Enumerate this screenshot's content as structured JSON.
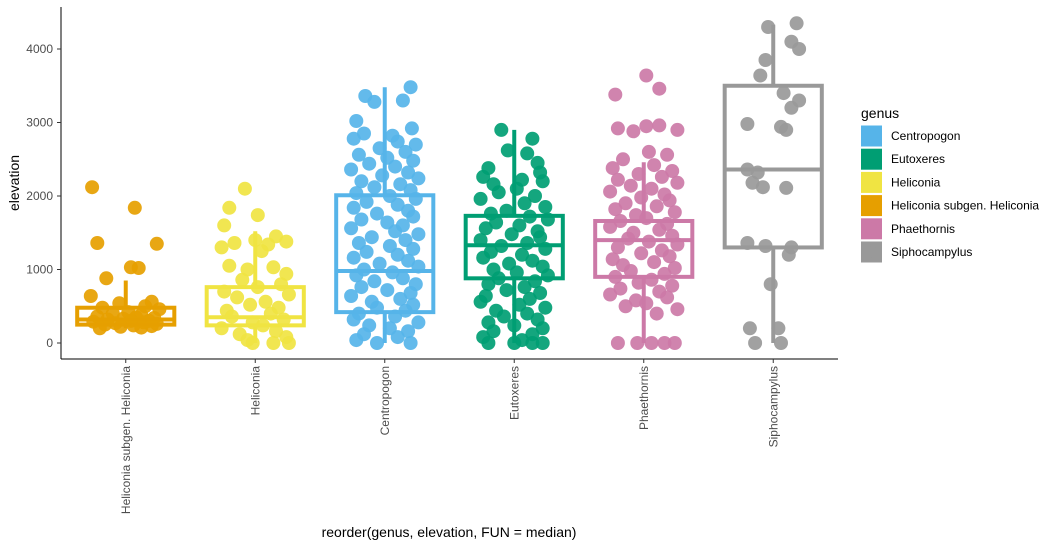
{
  "chart_data": {
    "type": "boxplot",
    "xlabel": "reorder(genus, elevation, FUN = median)",
    "ylabel": "elevation",
    "ylim": [
      -180,
      4450
    ],
    "yticks": [
      0,
      1000,
      2000,
      3000,
      4000
    ],
    "grid": false,
    "legend": {
      "title": "genus",
      "placement": "right",
      "entries": [
        "Centropogon",
        "Eutoxeres",
        "Heliconia",
        "Heliconia subgen. Heliconia",
        "Phaethornis",
        "Siphocampylus"
      ]
    },
    "colors": {
      "Centropogon": "#56B4E9",
      "Eutoxeres": "#009E73",
      "Heliconia": "#F0E442",
      "Heliconia subgen. Heliconia": "#E69F00",
      "Phaethornis": "#CC79A7",
      "Siphocampylus": "#999999"
    },
    "categories": [
      "Heliconia subgen. Heliconia",
      "Heliconia",
      "Centropogon",
      "Eutoxeres",
      "Phaethornis",
      "Siphocampylus"
    ],
    "boxes": [
      {
        "genus": "Heliconia subgen. Heliconia",
        "whisker_low": 200,
        "q1": 250,
        "median": 320,
        "q3": 480,
        "whisker_high": 850
      },
      {
        "genus": "Heliconia",
        "whisker_low": 0,
        "q1": 240,
        "median": 350,
        "q3": 760,
        "whisker_high": 1520
      },
      {
        "genus": "Centropogon",
        "whisker_low": 0,
        "q1": 420,
        "median": 980,
        "q3": 2010,
        "whisker_high": 3480
      },
      {
        "genus": "Eutoxeres",
        "whisker_low": 0,
        "q1": 880,
        "median": 1330,
        "q3": 1730,
        "whisker_high": 2900
      },
      {
        "genus": "Phaethornis",
        "whisker_low": 0,
        "q1": 900,
        "median": 1400,
        "q3": 1660,
        "whisker_high": 2460
      },
      {
        "genus": "Siphocampylus",
        "whisker_low": 0,
        "q1": 1300,
        "median": 2360,
        "q3": 3500,
        "whisker_high": 4330
      }
    ],
    "points": [
      {
        "genus": "Heliconia subgen. Heliconia",
        "values": [
          2120,
          1840,
          1360,
          1350,
          1030,
          1020,
          880,
          640,
          560,
          540,
          500,
          480,
          460,
          420,
          400,
          380,
          360,
          350,
          340,
          330,
          320,
          300,
          300,
          290,
          280,
          270,
          260,
          250,
          240,
          230,
          220,
          210,
          200
        ],
        "offsets": [
          -0.26,
          0.07,
          -0.22,
          0.24,
          0.04,
          0.1,
          -0.15,
          -0.27,
          0.2,
          -0.05,
          0.15,
          -0.18,
          0.26,
          0.02,
          -0.1,
          0.12,
          -0.22,
          0.08,
          0.22,
          -0.02,
          -0.14,
          0.18,
          0.04,
          -0.25,
          0.14,
          -0.08,
          0.24,
          -0.16,
          0.06,
          0.2,
          -0.04,
          0.12,
          -0.2
        ]
      },
      {
        "genus": "Heliconia",
        "values": [
          2100,
          1840,
          1740,
          1600,
          1450,
          1400,
          1380,
          1360,
          1340,
          1300,
          1250,
          1050,
          1030,
          1000,
          940,
          860,
          800,
          760,
          700,
          660,
          620,
          560,
          520,
          480,
          440,
          400,
          360,
          320,
          280,
          240,
          200,
          160,
          120,
          80,
          40,
          0,
          0,
          0
        ],
        "offsets": [
          -0.08,
          -0.2,
          0.02,
          -0.24,
          0.16,
          0.0,
          0.24,
          -0.16,
          0.1,
          -0.26,
          0.05,
          -0.2,
          0.14,
          -0.06,
          0.24,
          -0.1,
          0.2,
          0.02,
          -0.24,
          0.26,
          -0.14,
          0.08,
          -0.04,
          0.18,
          -0.22,
          0.12,
          -0.18,
          0.22,
          -0.02,
          0.06,
          -0.26,
          0.16,
          -0.12,
          0.24,
          -0.06,
          -0.02,
          0.14,
          0.26
        ]
      },
      {
        "genus": "Centropogon",
        "values": [
          3480,
          3360,
          3300,
          3280,
          3020,
          2920,
          2850,
          2820,
          2780,
          2740,
          2700,
          2650,
          2600,
          2560,
          2520,
          2480,
          2440,
          2400,
          2360,
          2320,
          2280,
          2240,
          2200,
          2160,
          2120,
          2080,
          2040,
          2000,
          1960,
          1920,
          1880,
          1840,
          1800,
          1760,
          1720,
          1680,
          1640,
          1600,
          1560,
          1520,
          1480,
          1440,
          1400,
          1360,
          1320,
          1280,
          1240,
          1200,
          1160,
          1120,
          1080,
          1040,
          1000,
          960,
          920,
          880,
          840,
          800,
          760,
          720,
          680,
          640,
          600,
          560,
          520,
          480,
          440,
          400,
          360,
          320,
          280,
          240,
          200,
          160,
          120,
          80,
          40,
          0,
          0
        ],
        "offsets": [
          0.2,
          -0.15,
          0.14,
          -0.08,
          -0.22,
          0.21,
          -0.16,
          0.06,
          -0.24,
          0.1,
          0.24,
          -0.04,
          0.16,
          -0.2,
          0.02,
          0.22,
          -0.12,
          0.08,
          -0.26,
          0.18,
          -0.02,
          0.26,
          -0.18,
          0.12,
          -0.08,
          0.2,
          -0.22,
          0.04,
          0.24,
          -0.14,
          0.1,
          -0.24,
          0.18,
          -0.06,
          0.22,
          -0.18,
          0.02,
          0.14,
          -0.26,
          0.08,
          0.26,
          -0.1,
          0.16,
          -0.2,
          0.04,
          0.22,
          -0.14,
          0.1,
          -0.24,
          0.18,
          -0.04,
          0.26,
          -0.16,
          0.06,
          -0.22,
          0.14,
          -0.08,
          0.24,
          -0.18,
          0.02,
          0.2,
          -0.26,
          0.12,
          -0.1,
          0.22,
          -0.06,
          0.16,
          -0.2,
          0.08,
          -0.24,
          0.26,
          -0.12,
          0.04,
          0.18,
          -0.16,
          0.1,
          -0.22,
          -0.06,
          0.2
        ]
      },
      {
        "genus": "Eutoxeres",
        "values": [
          2900,
          2780,
          2620,
          2580,
          2450,
          2380,
          2320,
          2260,
          2220,
          2200,
          2160,
          2100,
          2050,
          2000,
          1960,
          1900,
          1850,
          1800,
          1760,
          1720,
          1680,
          1640,
          1600,
          1560,
          1520,
          1480,
          1440,
          1400,
          1360,
          1320,
          1280,
          1240,
          1200,
          1160,
          1120,
          1080,
          1040,
          1000,
          960,
          920,
          880,
          840,
          800,
          760,
          720,
          680,
          640,
          600,
          560,
          520,
          480,
          440,
          400,
          360,
          320,
          280,
          240,
          200,
          160,
          120,
          80,
          40,
          0,
          0,
          0,
          0
        ],
        "offsets": [
          -0.1,
          0.14,
          -0.05,
          0.1,
          0.18,
          -0.2,
          0.2,
          -0.24,
          0.06,
          0.22,
          -0.16,
          0.02,
          -0.12,
          0.16,
          -0.26,
          0.08,
          0.24,
          -0.06,
          -0.18,
          0.12,
          0.26,
          -0.14,
          0.04,
          -0.22,
          0.18,
          -0.02,
          0.2,
          -0.26,
          0.1,
          -0.1,
          0.24,
          -0.18,
          0.06,
          -0.24,
          0.14,
          -0.04,
          0.22,
          -0.16,
          0.02,
          0.26,
          -0.12,
          0.16,
          -0.2,
          0.08,
          -0.06,
          0.2,
          -0.22,
          0.12,
          -0.26,
          0.04,
          0.24,
          -0.14,
          0.1,
          -0.08,
          0.18,
          -0.2,
          0.0,
          0.22,
          -0.16,
          0.14,
          -0.24,
          0.06,
          -0.2,
          0.0,
          0.14,
          0.22
        ]
      },
      {
        "genus": "Phaethornis",
        "values": [
          3640,
          3460,
          3380,
          2960,
          2950,
          2920,
          2900,
          2880,
          2600,
          2560,
          2500,
          2420,
          2380,
          2340,
          2300,
          2260,
          2220,
          2180,
          2140,
          2100,
          2060,
          2020,
          1980,
          1940,
          1900,
          1860,
          1820,
          1780,
          1740,
          1700,
          1660,
          1620,
          1580,
          1540,
          1500,
          1460,
          1420,
          1380,
          1340,
          1300,
          1260,
          1220,
          1180,
          1140,
          1100,
          1060,
          1020,
          980,
          940,
          900,
          860,
          820,
          780,
          740,
          700,
          660,
          620,
          580,
          540,
          500,
          460,
          400,
          0,
          0,
          0,
          0,
          0
        ],
        "offsets": [
          0.02,
          0.12,
          -0.22,
          0.12,
          0.02,
          -0.2,
          0.26,
          -0.08,
          0.04,
          0.18,
          -0.16,
          0.08,
          -0.24,
          0.22,
          -0.04,
          0.14,
          -0.2,
          0.26,
          -0.1,
          0.06,
          -0.26,
          0.16,
          -0.02,
          0.2,
          -0.14,
          0.1,
          -0.22,
          0.24,
          -0.06,
          0.02,
          -0.18,
          0.18,
          -0.26,
          0.12,
          -0.08,
          0.22,
          -0.12,
          0.04,
          0.26,
          -0.2,
          0.14,
          -0.02,
          0.2,
          -0.24,
          0.08,
          -0.16,
          0.24,
          -0.1,
          0.16,
          -0.22,
          0.06,
          -0.04,
          0.22,
          -0.18,
          0.12,
          -0.26,
          0.18,
          -0.06,
          0.02,
          -0.14,
          0.26,
          0.1,
          -0.2,
          -0.05,
          0.06,
          0.16,
          0.24
        ]
      },
      {
        "genus": "Siphocampylus",
        "values": [
          4350,
          4300,
          4100,
          4000,
          3850,
          3640,
          3400,
          3300,
          3200,
          2980,
          2940,
          2900,
          2360,
          2320,
          2180,
          2120,
          2110,
          1360,
          1320,
          1300,
          1200,
          800,
          200,
          200,
          0,
          0
        ],
        "offsets": [
          0.18,
          -0.04,
          0.14,
          0.2,
          -0.06,
          -0.1,
          0.08,
          0.2,
          0.14,
          -0.2,
          0.06,
          0.1,
          -0.2,
          -0.12,
          -0.16,
          -0.08,
          0.1,
          -0.2,
          -0.06,
          0.14,
          0.12,
          -0.02,
          -0.18,
          0.04,
          -0.14,
          0.06
        ]
      }
    ]
  }
}
